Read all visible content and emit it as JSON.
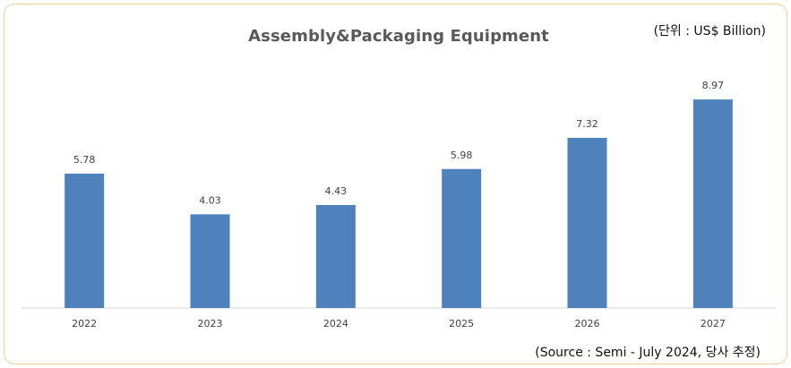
{
  "chart_data": {
    "type": "bar",
    "title": "Assembly&Packaging Equipment",
    "unit_note": "(단위 : US$ Billion)",
    "source_note": "(Source : Semi - July 2024, 당사 추정)",
    "categories": [
      "2022",
      "2023",
      "2024",
      "2025",
      "2026",
      "2027"
    ],
    "values": [
      5.78,
      4.03,
      4.43,
      5.98,
      7.32,
      8.97
    ],
    "value_labels": [
      "5.78",
      "4.03",
      "4.43",
      "5.98",
      "7.32",
      "8.97"
    ],
    "ylim": [
      0,
      10.4
    ],
    "grid": false,
    "legend": "none",
    "bar_color": "#4f81bd"
  }
}
